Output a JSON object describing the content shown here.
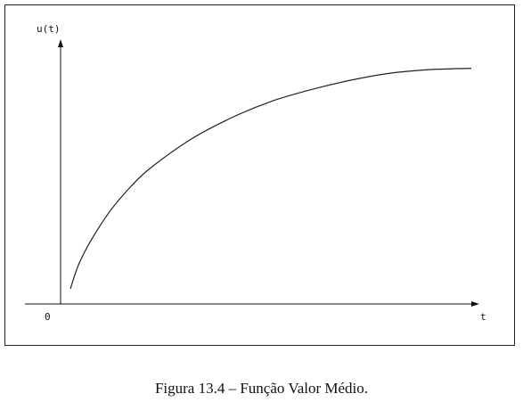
{
  "chart_data": {
    "type": "line",
    "title": "",
    "xlabel": "t",
    "ylabel": "u(t)",
    "origin_label": "0",
    "xlim": [
      0,
      1
    ],
    "ylim": [
      0,
      1
    ],
    "series": [
      {
        "x": [
          0.0,
          0.02,
          0.05,
          0.1,
          0.15,
          0.2,
          0.3,
          0.4,
          0.5,
          0.6,
          0.7,
          0.8,
          0.9,
          1.0
        ],
        "values": [
          0.03,
          0.13,
          0.23,
          0.36,
          0.46,
          0.54,
          0.66,
          0.75,
          0.82,
          0.87,
          0.91,
          0.94,
          0.955,
          0.96
        ]
      }
    ]
  },
  "caption": "Figura 13.4 – Função Valor Médio."
}
